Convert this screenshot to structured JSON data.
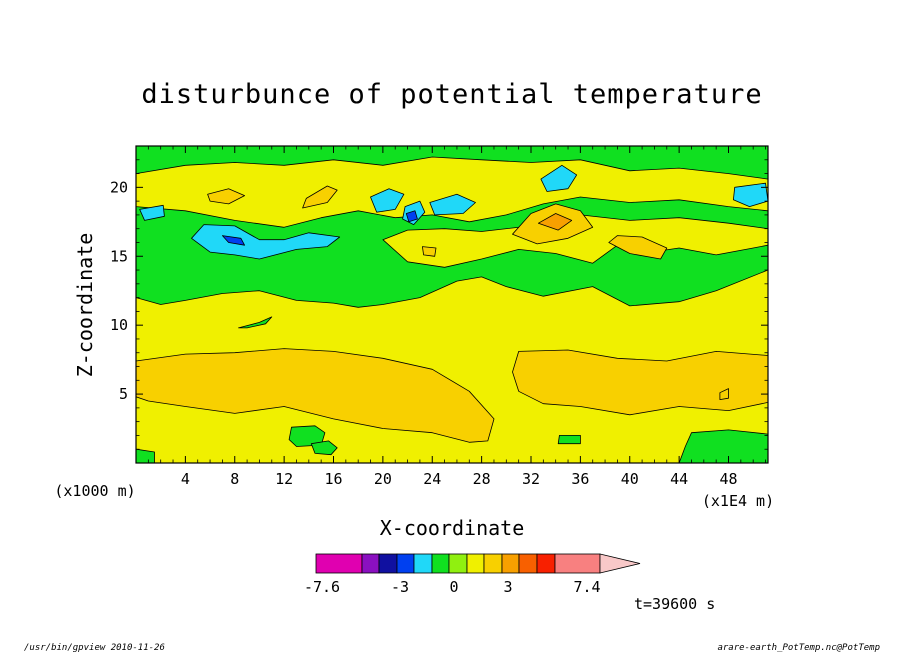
{
  "footer": {
    "left": "/usr/bin/gpview   2010-11-26",
    "right": "arare-earth_PotTemp.nc@PotTemp"
  },
  "chart_data": {
    "type": "heatmap",
    "title": "disturbunce of potential temperature",
    "xlabel": "X-coordinate",
    "ylabel": "Z-coordinate",
    "x_unit_label": "(x1E4 m)",
    "y_unit_label": "(x1000 m)",
    "xlim": [
      0,
      51.2
    ],
    "ylim": [
      0,
      23
    ],
    "x_ticks": [
      4,
      8,
      12,
      16,
      20,
      24,
      28,
      32,
      36,
      40,
      44,
      48
    ],
    "y_ticks": [
      5,
      10,
      15,
      20
    ],
    "time_label": "t=39600 s",
    "colorbar": {
      "labels": [
        "-7.6",
        "-3",
        "0",
        "3",
        "7.4"
      ],
      "colors": [
        "#e000b0",
        "#8a10c0",
        "#1010a0",
        "#0040f0",
        "#20d8f8",
        "#10e020",
        "#90f010",
        "#f0f000",
        "#f8d000",
        "#f8a000",
        "#f86000",
        "#f82000",
        "#f88080",
        "#f8c8c8"
      ]
    },
    "levels": {
      "background": {
        "value": 0.5,
        "color": "#f0f000"
      },
      "fills": [
        {
          "name": "upper-green",
          "value": -0.5,
          "color": "#10e020",
          "points": [
            [
              0,
              23
            ],
            [
              51.2,
              23
            ],
            [
              51.2,
              14
            ],
            [
              47,
              12.5
            ],
            [
              44,
              11.7
            ],
            [
              40,
              11.4
            ],
            [
              37,
              12.8
            ],
            [
              33,
              12.1
            ],
            [
              30,
              12.8
            ],
            [
              28,
              13.5
            ],
            [
              26,
              13.2
            ],
            [
              23,
              12
            ],
            [
              20,
              11.5
            ],
            [
              18,
              11.3
            ],
            [
              16,
              11.6
            ],
            [
              13,
              11.8
            ],
            [
              10,
              12.5
            ],
            [
              7,
              12.3
            ],
            [
              4,
              11.8
            ],
            [
              2,
              11.5
            ],
            [
              0,
              12
            ]
          ]
        },
        {
          "name": "upper-yellow-band",
          "value": 0.5,
          "color": "#f0f000",
          "points": [
            [
              0,
              21
            ],
            [
              4,
              21.6
            ],
            [
              8,
              21.8
            ],
            [
              12,
              21.6
            ],
            [
              16,
              22
            ],
            [
              20,
              21.6
            ],
            [
              24,
              22.2
            ],
            [
              28,
              22
            ],
            [
              32,
              21.8
            ],
            [
              36,
              22
            ],
            [
              40,
              21.2
            ],
            [
              44,
              21.4
            ],
            [
              48,
              21
            ],
            [
              51.2,
              20.6
            ],
            [
              51.2,
              18.3
            ],
            [
              48,
              18.6
            ],
            [
              44,
              19.1
            ],
            [
              40,
              18.9
            ],
            [
              36,
              19.3
            ],
            [
              33,
              18.8
            ],
            [
              30,
              18
            ],
            [
              27,
              17.5
            ],
            [
              24,
              18
            ],
            [
              21,
              17.8
            ],
            [
              18,
              18.3
            ],
            [
              15,
              17.8
            ],
            [
              12,
              17.1
            ],
            [
              8,
              17.6
            ],
            [
              4,
              18.3
            ],
            [
              0,
              18.6
            ]
          ]
        },
        {
          "name": "mid-yellow-patch",
          "value": 0.5,
          "color": "#f0f000",
          "points": [
            [
              20,
              16.2
            ],
            [
              22,
              14.6
            ],
            [
              25,
              14.2
            ],
            [
              28,
              14.8
            ],
            [
              31,
              15.5
            ],
            [
              34,
              15.2
            ],
            [
              37,
              14.5
            ],
            [
              39,
              15.8
            ],
            [
              41,
              15.2
            ],
            [
              44,
              15.6
            ],
            [
              47,
              15.1
            ],
            [
              50,
              15.6
            ],
            [
              51.2,
              15.8
            ],
            [
              51.2,
              17
            ],
            [
              48,
              17.4
            ],
            [
              44,
              17.8
            ],
            [
              40,
              17.6
            ],
            [
              36,
              18
            ],
            [
              32,
              17.2
            ],
            [
              28,
              16.8
            ],
            [
              25,
              17
            ],
            [
              22,
              16.9
            ]
          ]
        },
        {
          "name": "lower-orange-left",
          "value": 1.5,
          "color": "#f8d000",
          "points": [
            [
              0,
              7.4
            ],
            [
              4,
              7.9
            ],
            [
              8,
              8
            ],
            [
              12,
              8.3
            ],
            [
              16,
              8.1
            ],
            [
              20,
              7.6
            ],
            [
              24,
              6.8
            ],
            [
              27,
              5.2
            ],
            [
              29,
              3.2
            ],
            [
              28.5,
              1.6
            ],
            [
              27,
              1.5
            ],
            [
              24,
              2.2
            ],
            [
              20,
              2.5
            ],
            [
              16,
              3.2
            ],
            [
              12,
              4.1
            ],
            [
              8,
              3.6
            ],
            [
              4,
              4.1
            ],
            [
              1,
              4.5
            ],
            [
              0,
              4.8
            ]
          ]
        },
        {
          "name": "lower-orange-right",
          "value": 1.5,
          "color": "#f8d000",
          "points": [
            [
              31,
              8.1
            ],
            [
              35,
              8.2
            ],
            [
              39,
              7.6
            ],
            [
              43,
              7.4
            ],
            [
              47,
              8.1
            ],
            [
              51.2,
              7.8
            ],
            [
              51.2,
              4.4
            ],
            [
              48,
              3.8
            ],
            [
              44,
              4.1
            ],
            [
              40,
              3.5
            ],
            [
              36,
              4.1
            ],
            [
              33,
              4.3
            ],
            [
              31,
              5.2
            ],
            [
              30.5,
              6.6
            ]
          ]
        },
        {
          "name": "lower-green-a",
          "value": -0.5,
          "color": "#10e020",
          "points": [
            [
              12.6,
              2.6
            ],
            [
              14.5,
              2.7
            ],
            [
              15.3,
              2.2
            ],
            [
              15,
              1.3
            ],
            [
              13,
              1.2
            ],
            [
              12.4,
              1.7
            ]
          ]
        },
        {
          "name": "lower-green-b",
          "value": -0.5,
          "color": "#10e020",
          "points": [
            [
              14.2,
              1.4
            ],
            [
              15.6,
              1.6
            ],
            [
              16.3,
              1.1
            ],
            [
              15.8,
              0.6
            ],
            [
              14.5,
              0.7
            ]
          ]
        },
        {
          "name": "lower-green-right",
          "value": -0.5,
          "color": "#10e020",
          "points": [
            [
              45,
              2.2
            ],
            [
              48,
              2.4
            ],
            [
              51.2,
              2.1
            ],
            [
              51.2,
              0
            ],
            [
              44,
              0
            ],
            [
              44.5,
              1.2
            ]
          ]
        },
        {
          "name": "lower-green-c",
          "value": -0.5,
          "color": "#10e020",
          "points": [
            [
              34.3,
              2
            ],
            [
              36,
              2
            ],
            [
              36,
              1.4
            ],
            [
              34.2,
              1.4
            ]
          ]
        },
        {
          "name": "lower-green-d",
          "value": -0.5,
          "color": "#10e020",
          "points": [
            [
              0,
              1
            ],
            [
              1.5,
              0.8
            ],
            [
              1.5,
              0
            ],
            [
              0,
              0
            ]
          ]
        },
        {
          "name": "mid-green-sliver",
          "value": -0.5,
          "color": "#10e020",
          "points": [
            [
              8.3,
              9.8
            ],
            [
              10,
              10.2
            ],
            [
              11,
              10.6
            ],
            [
              10.5,
              10.1
            ],
            [
              9,
              9.8
            ]
          ]
        },
        {
          "name": "blue-elongated",
          "value": -1.5,
          "color": "#20d8f8",
          "points": [
            [
              4.5,
              16.3
            ],
            [
              5.5,
              17.3
            ],
            [
              8,
              17.2
            ],
            [
              10,
              16.2
            ],
            [
              12,
              16.2
            ],
            [
              14,
              16.7
            ],
            [
              16.5,
              16.4
            ],
            [
              15.5,
              15.7
            ],
            [
              13,
              15.5
            ],
            [
              10,
              14.8
            ],
            [
              8,
              15.1
            ],
            [
              6,
              15.3
            ]
          ]
        },
        {
          "name": "blue-core",
          "value": -2.5,
          "color": "#0040f0",
          "points": [
            [
              7,
              16.5
            ],
            [
              8.5,
              16.3
            ],
            [
              8.8,
              15.8
            ],
            [
              7.5,
              16
            ]
          ]
        },
        {
          "name": "blue-a",
          "value": -1.5,
          "color": "#20d8f8",
          "points": [
            [
              0.3,
              18.4
            ],
            [
              2.2,
              18.7
            ],
            [
              2.3,
              17.9
            ],
            [
              0.7,
              17.6
            ]
          ]
        },
        {
          "name": "blue-b",
          "value": -1.5,
          "color": "#20d8f8",
          "points": [
            [
              19,
              19.3
            ],
            [
              20.5,
              19.9
            ],
            [
              21.7,
              19.5
            ],
            [
              21,
              18.4
            ],
            [
              19.5,
              18.2
            ]
          ]
        },
        {
          "name": "blue-c",
          "value": -1.5,
          "color": "#20d8f8",
          "points": [
            [
              21.8,
              18.6
            ],
            [
              23,
              19
            ],
            [
              23.4,
              18.2
            ],
            [
              22.5,
              17.3
            ],
            [
              21.6,
              17.7
            ]
          ]
        },
        {
          "name": "blue-d",
          "value": -1.5,
          "color": "#20d8f8",
          "points": [
            [
              23.8,
              18.9
            ],
            [
              26,
              19.5
            ],
            [
              27.5,
              18.9
            ],
            [
              26.5,
              18.1
            ],
            [
              24.2,
              18
            ]
          ]
        },
        {
          "name": "blue-e",
          "value": -1.5,
          "color": "#20d8f8",
          "points": [
            [
              32.8,
              20.6
            ],
            [
              34.5,
              21.6
            ],
            [
              35.7,
              20.9
            ],
            [
              35,
              19.9
            ],
            [
              33.3,
              19.7
            ]
          ]
        },
        {
          "name": "blue-f",
          "value": -1.5,
          "color": "#20d8f8",
          "points": [
            [
              48.5,
              20
            ],
            [
              51,
              20.3
            ],
            [
              51.2,
              19
            ],
            [
              49.7,
              18.6
            ],
            [
              48.4,
              19.1
            ]
          ]
        },
        {
          "name": "blue-dark-small",
          "value": -2.5,
          "color": "#0040f0",
          "points": [
            [
              21.9,
              18.1
            ],
            [
              22.6,
              18.3
            ],
            [
              22.8,
              17.7
            ],
            [
              22.1,
              17.5
            ]
          ]
        },
        {
          "name": "orange-a",
          "value": 1.5,
          "color": "#f8d000",
          "points": [
            [
              5.8,
              19.5
            ],
            [
              7.5,
              19.9
            ],
            [
              8.8,
              19.4
            ],
            [
              7.5,
              18.8
            ],
            [
              6,
              19
            ]
          ]
        },
        {
          "name": "orange-b",
          "value": 1.5,
          "color": "#f8d000",
          "points": [
            [
              13.5,
              18.5
            ],
            [
              15.5,
              18.9
            ],
            [
              16.3,
              19.8
            ],
            [
              15.5,
              20.1
            ],
            [
              13.8,
              19.2
            ]
          ]
        },
        {
          "name": "orange-c",
          "value": 1.5,
          "color": "#f8d000",
          "points": [
            [
              30.5,
              16.6
            ],
            [
              32,
              18.1
            ],
            [
              34,
              18.8
            ],
            [
              36,
              18.3
            ],
            [
              37,
              17.1
            ],
            [
              35,
              16.3
            ],
            [
              32.5,
              15.9
            ]
          ]
        },
        {
          "name": "orange-core",
          "value": 2.5,
          "color": "#f8a000",
          "points": [
            [
              32.6,
              17.4
            ],
            [
              34,
              18.1
            ],
            [
              35.3,
              17.6
            ],
            [
              34.2,
              16.9
            ]
          ]
        },
        {
          "name": "orange-d",
          "value": 1.5,
          "color": "#f8d000",
          "points": [
            [
              38.3,
              16
            ],
            [
              40,
              15.2
            ],
            [
              42.5,
              14.8
            ],
            [
              43,
              15.6
            ],
            [
              41,
              16.4
            ],
            [
              39,
              16.5
            ]
          ]
        },
        {
          "name": "orange-e",
          "value": 1.5,
          "color": "#f8d000",
          "points": [
            [
              23.2,
              15.7
            ],
            [
              24.3,
              15.6
            ],
            [
              24.2,
              15
            ],
            [
              23.3,
              15.1
            ]
          ]
        },
        {
          "name": "orange-f",
          "value": 1.5,
          "color": "#f8d000",
          "points": [
            [
              47.3,
              5.1
            ],
            [
              48,
              5.4
            ],
            [
              48,
              4.7
            ],
            [
              47.3,
              4.6
            ]
          ]
        }
      ]
    }
  }
}
